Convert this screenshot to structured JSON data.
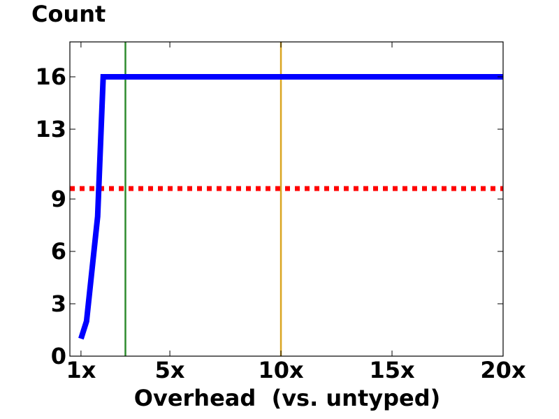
{
  "chart_data": {
    "type": "line",
    "title": "Count",
    "xlabel": "Overhead  (vs. untyped)",
    "ylabel": "",
    "xlim": [
      0.5,
      20
    ],
    "ylim": [
      0,
      18
    ],
    "x_ticks": [
      1,
      5,
      10,
      15,
      20
    ],
    "x_tick_labels": [
      "1x",
      "5x",
      "10x",
      "15x",
      "20x"
    ],
    "y_ticks": [
      0,
      3,
      6,
      9,
      13,
      16
    ],
    "y_tick_labels": [
      "0",
      "3",
      "6",
      "9",
      "13",
      "16"
    ],
    "grid": false,
    "legend": "none",
    "series": [
      {
        "color": "#0000ff",
        "style": "solid",
        "x": [
          1,
          1.25,
          1.5,
          1.75,
          2,
          3,
          5,
          10,
          15,
          20
        ],
        "y": [
          1,
          2,
          5,
          8,
          16,
          16,
          16,
          16,
          16,
          16
        ]
      }
    ],
    "reference_lines": [
      {
        "orientation": "horizontal",
        "value": 9.6,
        "color": "#ff0000",
        "style": "dotted"
      },
      {
        "orientation": "vertical",
        "value": 3,
        "color": "#2e8b2e",
        "style": "solid"
      },
      {
        "orientation": "vertical",
        "value": 10,
        "color": "#daa520",
        "style": "solid"
      }
    ]
  }
}
